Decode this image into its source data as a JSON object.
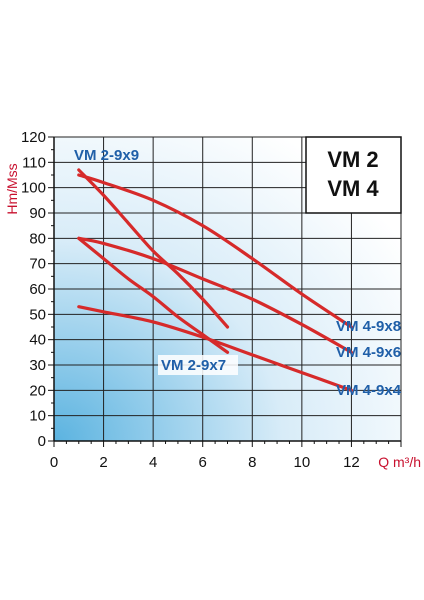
{
  "chart_data": {
    "type": "line",
    "title": "",
    "xlabel": "Q m³/h",
    "ylabel": "Hm/Mss",
    "xlim": [
      0,
      14
    ],
    "ylim": [
      0,
      120
    ],
    "x_ticks": [
      "0",
      "2",
      "4",
      "6",
      "8",
      "10",
      "12"
    ],
    "y_ticks": [
      "0",
      "10",
      "20",
      "30",
      "40",
      "50",
      "60",
      "70",
      "80",
      "90",
      "100",
      "110",
      "120"
    ],
    "grid": true,
    "legend": "VM 2\nVM 4",
    "legend_lines": [
      "VM 2",
      "VM 4"
    ],
    "series": [
      {
        "name": "VM 2-9x9",
        "x": [
          1,
          2,
          3,
          4,
          5,
          6,
          7
        ],
        "y": [
          107,
          97,
          86,
          75,
          66,
          56,
          45
        ]
      },
      {
        "name": "VM 2-9x7",
        "x": [
          1,
          2,
          3,
          4,
          5,
          6,
          7
        ],
        "y": [
          80,
          72,
          64,
          57,
          49,
          42,
          35
        ]
      },
      {
        "name": "VM 4-9x8",
        "x": [
          1,
          2,
          4,
          6,
          8,
          10,
          12
        ],
        "y": [
          105,
          102,
          95,
          85,
          72,
          58,
          45
        ]
      },
      {
        "name": "VM 4-9x6",
        "x": [
          1,
          2,
          4,
          6,
          8,
          10,
          12
        ],
        "y": [
          80,
          78,
          72,
          64,
          56,
          46,
          35
        ]
      },
      {
        "name": "VM 4-9x4",
        "x": [
          1,
          2,
          4,
          6,
          8,
          10,
          12
        ],
        "y": [
          53,
          51,
          47,
          41,
          34,
          27,
          20
        ]
      }
    ],
    "colors": {
      "curve": "#d62a2a",
      "label": "#1f5fa8",
      "axis_title": "#c8102e",
      "grid": "#222222",
      "gradient": "#5bb3e0"
    }
  }
}
